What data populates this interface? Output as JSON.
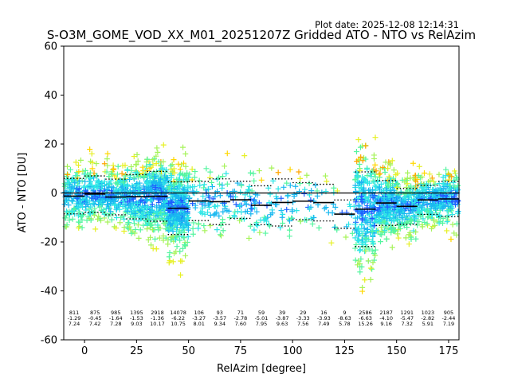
{
  "chart_data": {
    "type": "scatter",
    "title": "S-O3M_GOME_VOD_XX_M01_20251207Z Gridded ATO - NTO vs RelAzim",
    "plot_date": "Plot date: 2025-12-08 12:14:31",
    "xlabel": "RelAzim [degree]",
    "ylabel": "ATO - NTO [DU]",
    "xlim": [
      -10,
      180
    ],
    "ylim": [
      -60,
      60
    ],
    "xticks": [
      0,
      25,
      50,
      75,
      100,
      125,
      150,
      175
    ],
    "yticks": [
      -60,
      -40,
      -20,
      0,
      20,
      40,
      60
    ],
    "zero_line": 0,
    "scatter_colors": [
      "#1f5cff",
      "#19b8f0",
      "#2ee6e6",
      "#55f5a0",
      "#a6f35a",
      "#e6f024",
      "#ffd700",
      "#ffa500"
    ],
    "bins": [
      {
        "x_start": -10,
        "x_end": 0,
        "count": "811",
        "mean": "-1.29",
        "std": "7.24"
      },
      {
        "x_start": 0,
        "x_end": 10,
        "count": "875",
        "mean": "-0.45",
        "std": "7.42"
      },
      {
        "x_start": 10,
        "x_end": 20,
        "count": "985",
        "mean": "-1.64",
        "std": "7.28"
      },
      {
        "x_start": 20,
        "x_end": 30,
        "count": "1395",
        "mean": "-1.53",
        "std": "9.03"
      },
      {
        "x_start": 30,
        "x_end": 40,
        "count": "2918",
        "mean": "-1.36",
        "std": "10.17"
      },
      {
        "x_start": 40,
        "x_end": 50,
        "count": "14078",
        "mean": "-6.22",
        "std": "10.75"
      },
      {
        "x_start": 50,
        "x_end": 60,
        "count": "106",
        "mean": "-3.27",
        "std": "8.01"
      },
      {
        "x_start": 60,
        "x_end": 70,
        "count": "93",
        "mean": "-3.57",
        "std": "9.34"
      },
      {
        "x_start": 70,
        "x_end": 80,
        "count": "71",
        "mean": "-2.78",
        "std": "7.60"
      },
      {
        "x_start": 80,
        "x_end": 90,
        "count": "59",
        "mean": "-5.01",
        "std": "7.95"
      },
      {
        "x_start": 90,
        "x_end": 100,
        "count": "39",
        "mean": "-3.87",
        "std": "9.63"
      },
      {
        "x_start": 100,
        "x_end": 110,
        "count": "29",
        "mean": "-3.33",
        "std": "7.56"
      },
      {
        "x_start": 110,
        "x_end": 120,
        "count": "16",
        "mean": "-3.93",
        "std": "7.49"
      },
      {
        "x_start": 120,
        "x_end": 130,
        "count": "9",
        "mean": "-8.63",
        "std": "5.78"
      },
      {
        "x_start": 130,
        "x_end": 140,
        "count": "2586",
        "mean": "-6.63",
        "std": "15.26"
      },
      {
        "x_start": 140,
        "x_end": 150,
        "count": "2187",
        "mean": "-4.10",
        "std": "9.16"
      },
      {
        "x_start": 150,
        "x_end": 160,
        "count": "1291",
        "mean": "-5.47",
        "std": "7.32"
      },
      {
        "x_start": 160,
        "x_end": 170,
        "count": "1023",
        "mean": "-2.82",
        "std": "5.91"
      },
      {
        "x_start": 170,
        "x_end": 180,
        "count": "905",
        "mean": "-2.44",
        "std": "7.19"
      }
    ]
  }
}
